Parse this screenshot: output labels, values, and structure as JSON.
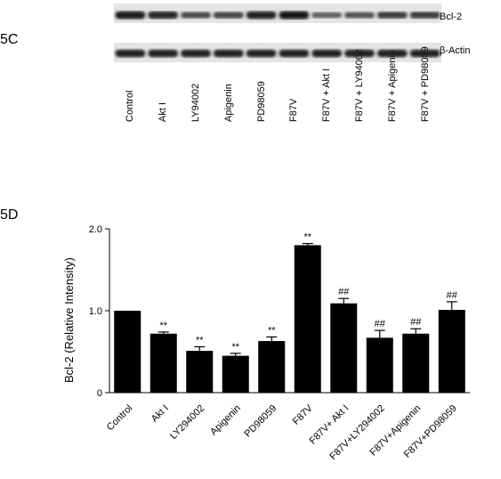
{
  "panel_c": {
    "label": "5C",
    "blot_rows": [
      {
        "label": "Bcl-2",
        "intensities": [
          0.95,
          0.85,
          0.6,
          0.65,
          0.9,
          1.0,
          0.45,
          0.55,
          0.7,
          0.7
        ]
      },
      {
        "label": "β-Actin",
        "intensities": [
          0.9,
          0.9,
          0.9,
          0.9,
          0.9,
          0.9,
          0.9,
          0.9,
          0.9,
          0.9
        ]
      }
    ],
    "lanes": [
      "Control",
      "Akt I",
      "LY94002",
      "Apigenin",
      "PD98059",
      "F87V",
      "F87V + Akt I",
      "F87V + LY94002",
      "F87V + Apigenin",
      "F87V + PD98059"
    ]
  },
  "panel_d": {
    "label": "5D",
    "chart_data": {
      "type": "bar",
      "categories": [
        "Control",
        "Akt I",
        "LY294002",
        "Apigenin",
        "PD98059",
        "F87V",
        "F87V+ Akt I",
        "F87V+LY294002",
        "F87V+Apigenin",
        "F87V+PD98059"
      ],
      "values": [
        1.0,
        0.72,
        0.51,
        0.45,
        0.63,
        1.8,
        1.09,
        0.67,
        0.72,
        1.01
      ],
      "errors": [
        0.0,
        0.02,
        0.05,
        0.03,
        0.05,
        0.02,
        0.06,
        0.09,
        0.06,
        0.1
      ],
      "annotations": [
        "",
        "**",
        "**",
        "**",
        "**",
        "**",
        "##",
        "##",
        "##",
        "##"
      ],
      "ylabel": "Bcl-2  (Relative Intensity)",
      "xlabel": "",
      "ylim": [
        0,
        2.0
      ],
      "yticks": [
        "0",
        "1.0",
        "2.0"
      ],
      "ytick_values": [
        0,
        1.0,
        2.0
      ],
      "grid": false,
      "bar_color": "#000000"
    }
  }
}
